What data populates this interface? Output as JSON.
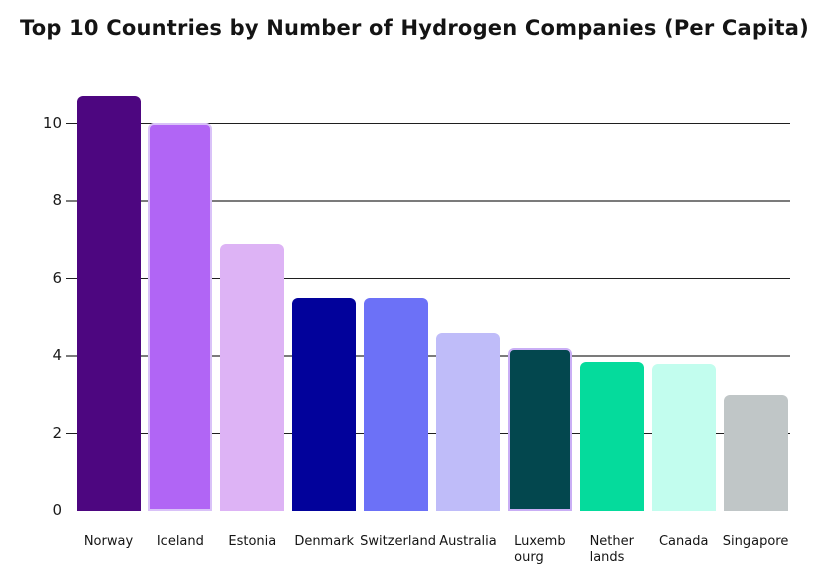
{
  "title": "Top 10 Countries by Number of Hydrogen Companies (Per Capita)",
  "colors": {
    "background": "#ffffff",
    "title_text": "#141414",
    "axis_text": "#1a1a1a",
    "gridline_dark": "#1f1f1f",
    "gridline_gray": "#7b7b7b"
  },
  "y_axis": {
    "ticks": [
      {
        "label": "10",
        "value": 10
      },
      {
        "label": "8",
        "value": 8
      },
      {
        "label": "6",
        "value": 6
      },
      {
        "label": "4",
        "value": 4
      },
      {
        "label": "2",
        "value": 2
      },
      {
        "label": "0",
        "value": 0
      }
    ],
    "gridlines": [
      {
        "value": 10,
        "style": "dark"
      },
      {
        "value": 8,
        "style": "gray"
      },
      {
        "value": 6,
        "style": "dark"
      },
      {
        "value": 4,
        "style": "gray"
      },
      {
        "value": 2,
        "style": "dark"
      }
    ]
  },
  "chart_data": {
    "type": "bar",
    "title": "Top 10 Countries by Number of Hydrogen Companies (Per Capita)",
    "xlabel": "",
    "ylabel": "",
    "ylim": [
      0,
      11
    ],
    "grid": true,
    "legend": false,
    "categories": [
      "Norway",
      "Iceland",
      "Estonia",
      "Denmark",
      "Switzerland",
      "Australia",
      "Luxembourg",
      "Netherlands",
      "Canada",
      "Singapore"
    ],
    "values": [
      10.7,
      10.0,
      6.9,
      5.5,
      5.5,
      4.6,
      4.2,
      3.85,
      3.8,
      3.0
    ],
    "bars": [
      {
        "label": "Norway",
        "display_label": "Norway",
        "value": 10.7,
        "color": "#4d0680",
        "border": null
      },
      {
        "label": "Iceland",
        "display_label": "Iceland",
        "value": 10.0,
        "color": "#b165f5",
        "border": "#d9c2f8"
      },
      {
        "label": "Estonia",
        "display_label": "Estonia",
        "value": 6.9,
        "color": "#ddb3f5",
        "border": null
      },
      {
        "label": "Denmark",
        "display_label": "Denmark",
        "value": 5.5,
        "color": "#02029b",
        "border": null
      },
      {
        "label": "Switzerland",
        "display_label": "Switzerland",
        "value": 5.5,
        "color": "#6c71f7",
        "border": null
      },
      {
        "label": "Australia",
        "display_label": "Australia",
        "value": 4.6,
        "color": "#bfbcf9",
        "border": null
      },
      {
        "label": "Luxembourg",
        "display_label": "Luxemb\nourg",
        "value": 4.2,
        "color": "#03474e",
        "border": "#c9aef5"
      },
      {
        "label": "Netherlands",
        "display_label": "Nether\nlands",
        "value": 3.85,
        "color": "#05db9c",
        "border": null
      },
      {
        "label": "Canada",
        "display_label": "Canada",
        "value": 3.8,
        "color": "#c2fdee",
        "border": null
      },
      {
        "label": "Singapore",
        "display_label": "Singapore",
        "value": 3.0,
        "color": "#c0c6c7",
        "border": null
      }
    ]
  }
}
